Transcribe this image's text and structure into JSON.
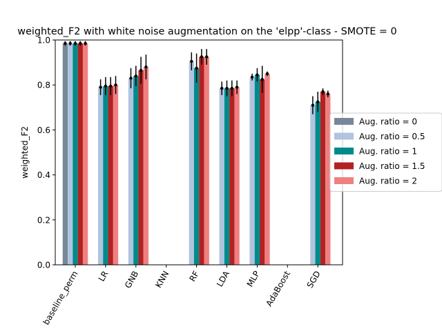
{
  "chart_data": {
    "type": "bar",
    "title": "weighted_F2 with white noise augmentation on the 'elpp'-class - SMOTE = 0",
    "xlabel": "",
    "ylabel": "weighted_F2",
    "ylim": [
      0,
      1.0
    ],
    "yticks": [
      "0.0",
      "0.2",
      "0.4",
      "0.6",
      "0.8",
      "1.0"
    ],
    "categories": [
      "baseline_perm",
      "LR",
      "GNB",
      "KNN",
      "RF",
      "LDA",
      "MLP",
      "AdaBoost",
      "SGD"
    ],
    "legend_placement": "center-right-outside",
    "grid": false,
    "series": [
      {
        "name": "Aug. ratio = 0",
        "color": "#778899",
        "values": [
          0.985,
          null,
          null,
          null,
          null,
          null,
          null,
          null,
          null
        ],
        "errors": [
          0.01,
          null,
          null,
          null,
          null,
          null,
          null,
          null,
          null
        ]
      },
      {
        "name": "Aug. ratio = 0.5",
        "color": "#b0c4de",
        "values": [
          0.985,
          0.79,
          0.83,
          null,
          0.905,
          0.785,
          0.835,
          null,
          0.71
        ],
        "errors": [
          0.01,
          0.035,
          0.045,
          null,
          0.04,
          0.03,
          0.015,
          null,
          0.04
        ]
      },
      {
        "name": "Aug. ratio = 1",
        "color": "#008b8b",
        "values": [
          0.985,
          0.795,
          0.84,
          null,
          0.875,
          0.785,
          0.845,
          null,
          0.725
        ],
        "errors": [
          0.01,
          0.04,
          0.045,
          null,
          0.065,
          0.035,
          0.03,
          null,
          0.045
        ]
      },
      {
        "name": "Aug. ratio = 1.5",
        "color": "#b22222",
        "values": [
          0.985,
          0.795,
          0.865,
          null,
          0.925,
          0.785,
          0.825,
          null,
          0.77
        ],
        "errors": [
          0.01,
          0.04,
          0.06,
          null,
          0.035,
          0.035,
          0.06,
          null,
          0.015
        ]
      },
      {
        "name": "Aug. ratio = 2",
        "color": "#f08080",
        "values": [
          0.985,
          0.8,
          0.88,
          null,
          0.925,
          0.79,
          0.85,
          null,
          0.76
        ],
        "errors": [
          0.01,
          0.04,
          0.055,
          null,
          0.035,
          0.03,
          0.01,
          null,
          0.015
        ]
      }
    ]
  }
}
